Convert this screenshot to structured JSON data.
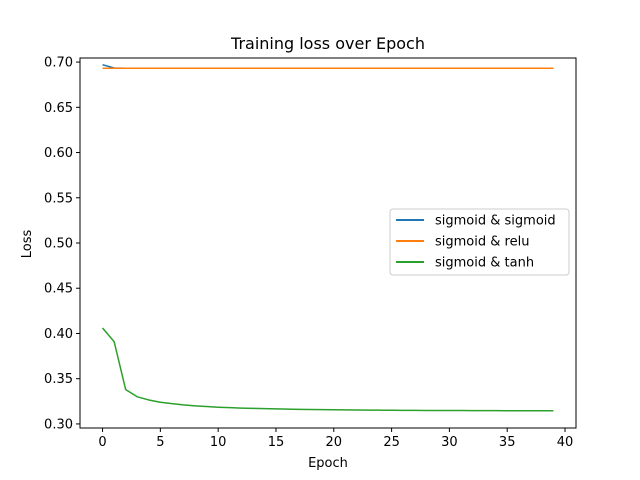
{
  "chart_data": {
    "type": "line",
    "title": "Training loss over Epoch",
    "xlabel": "Epoch",
    "ylabel": "Loss",
    "xlim": [
      -1.95,
      40.95
    ],
    "ylim": [
      0.2955,
      0.7045
    ],
    "xticks": [
      0,
      5,
      10,
      15,
      20,
      25,
      30,
      35,
      40
    ],
    "xtick_labels": [
      "0",
      "5",
      "10",
      "15",
      "20",
      "25",
      "30",
      "35",
      "40"
    ],
    "yticks": [
      0.3,
      0.35,
      0.4,
      0.45,
      0.5,
      0.55,
      0.6,
      0.65,
      0.7
    ],
    "ytick_labels": [
      "0.30",
      "0.35",
      "0.40",
      "0.45",
      "0.50",
      "0.55",
      "0.60",
      "0.65",
      "0.70"
    ],
    "grid": false,
    "legend_position": "center-right",
    "x": [
      0,
      1,
      2,
      3,
      4,
      5,
      6,
      7,
      8,
      9,
      10,
      11,
      12,
      13,
      14,
      15,
      16,
      17,
      18,
      19,
      20,
      21,
      22,
      23,
      24,
      25,
      26,
      27,
      28,
      29,
      30,
      31,
      32,
      33,
      34,
      35,
      36,
      37,
      38,
      39
    ],
    "series": [
      {
        "name": "sigmoid & sigmoid",
        "color": "#1f77b4",
        "values": [
          0.697,
          0.6935,
          0.6932,
          0.6932,
          0.6932,
          0.6932,
          0.6932,
          0.6932,
          0.6932,
          0.6932,
          0.6932,
          0.6932,
          0.6932,
          0.6932,
          0.6932,
          0.6932,
          0.6932,
          0.6932,
          0.6932,
          0.6932,
          0.6932,
          0.6932,
          0.6932,
          0.6932,
          0.6932,
          0.6932,
          0.6932,
          0.6932,
          0.6932,
          0.6932,
          0.6932,
          0.6932,
          0.6932,
          0.6932,
          0.6932,
          0.6932,
          0.6932,
          0.6932,
          0.6932,
          0.6932
        ]
      },
      {
        "name": "sigmoid & relu",
        "color": "#ff7f0e",
        "values": [
          0.6932,
          0.6932,
          0.6932,
          0.6932,
          0.6932,
          0.6932,
          0.6932,
          0.6932,
          0.6932,
          0.6932,
          0.6932,
          0.6932,
          0.6932,
          0.6932,
          0.6932,
          0.6932,
          0.6932,
          0.6932,
          0.6932,
          0.6932,
          0.6932,
          0.6932,
          0.6932,
          0.6932,
          0.6932,
          0.6932,
          0.6932,
          0.6932,
          0.6932,
          0.6932,
          0.6932,
          0.6932,
          0.6932,
          0.6932,
          0.6932,
          0.6932,
          0.6932,
          0.6932,
          0.6932,
          0.6932
        ]
      },
      {
        "name": "sigmoid & tanh",
        "color": "#2ca02c",
        "values": [
          0.406,
          0.391,
          0.338,
          0.33,
          0.3265,
          0.324,
          0.3225,
          0.321,
          0.32,
          0.3192,
          0.3185,
          0.318,
          0.3175,
          0.3172,
          0.3169,
          0.3166,
          0.3163,
          0.3161,
          0.3159,
          0.3158,
          0.3157,
          0.3155,
          0.3154,
          0.3153,
          0.3152,
          0.3151,
          0.315,
          0.315,
          0.3149,
          0.3149,
          0.3148,
          0.3148,
          0.3147,
          0.3147,
          0.3147,
          0.3146,
          0.3146,
          0.3146,
          0.3146,
          0.3146
        ]
      }
    ]
  }
}
